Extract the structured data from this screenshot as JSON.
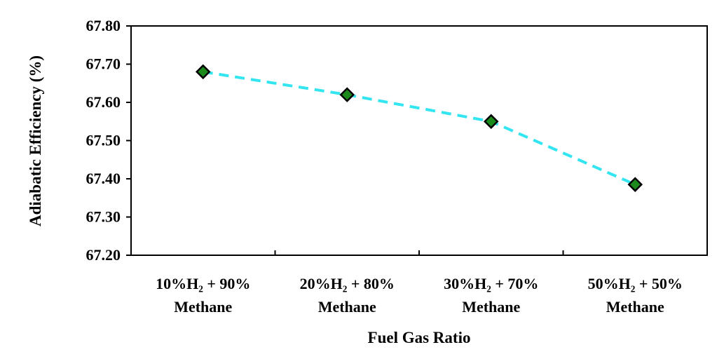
{
  "chart_data": {
    "type": "line",
    "title": "",
    "xlabel": "Fuel Gas Ratio",
    "ylabel": "Adiabatic Efficiency (%)",
    "ylim": [
      67.2,
      67.8
    ],
    "yticks": [
      "67.20",
      "67.30",
      "67.40",
      "67.50",
      "67.60",
      "67.70",
      "67.80"
    ],
    "categories": [
      [
        "10%H₂ + 90%",
        "Methane"
      ],
      [
        "20%H₂ + 80%",
        "Methane"
      ],
      [
        "30%H₂ + 70%",
        "Methane"
      ],
      [
        "50%H₂ + 50%",
        "Methane"
      ]
    ],
    "series": [
      {
        "values": [
          67.68,
          67.62,
          67.55,
          67.385
        ]
      }
    ],
    "line_color": "#33e5f0",
    "marker_color": "#1b8a1b",
    "marker_edge_color": "#000000",
    "line_style": "dashed",
    "marker": "diamond",
    "grid": false
  }
}
